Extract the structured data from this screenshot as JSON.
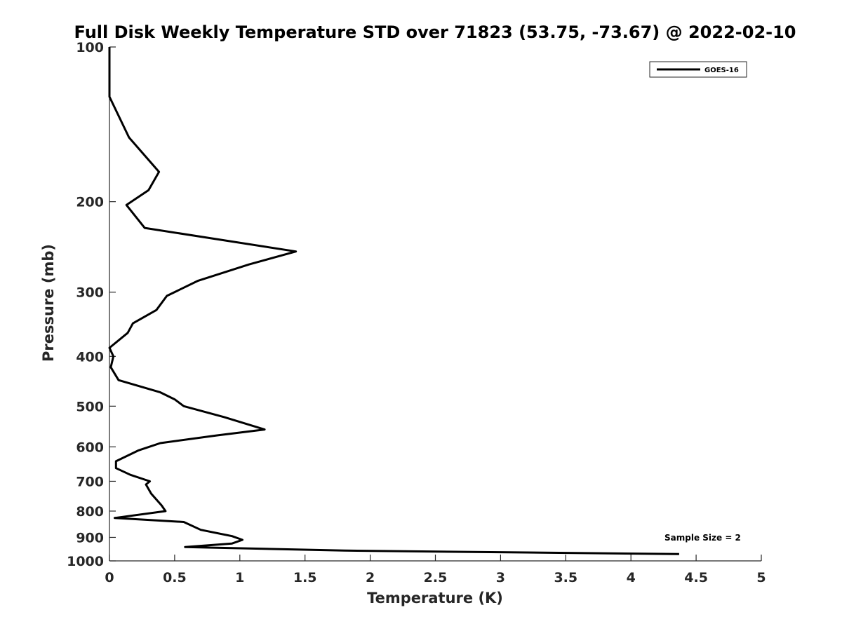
{
  "chart_data": {
    "type": "line",
    "title": "Full Disk Weekly Temperature STD over 71823 (53.75, -73.67) @ 2022-02-10",
    "xlabel": "Temperature (K)",
    "ylabel": "Pressure (mb)",
    "xlim": [
      0,
      5
    ],
    "ylim": [
      100,
      1000
    ],
    "y_scale": "log",
    "y_reversed": true,
    "x_ticks": [
      "0",
      "0.5",
      "1",
      "1.5",
      "2",
      "2.5",
      "3",
      "3.5",
      "4",
      "4.5",
      "5"
    ],
    "x_tick_values": [
      0,
      0.5,
      1,
      1.5,
      2,
      2.5,
      3,
      3.5,
      4,
      4.5,
      5
    ],
    "y_ticks": [
      "100",
      "200",
      "300",
      "400",
      "500",
      "600",
      "700",
      "800",
      "900",
      "1000"
    ],
    "y_tick_values": [
      100,
      200,
      300,
      400,
      500,
      600,
      700,
      800,
      900,
      1000
    ],
    "grid": false,
    "legend_position": "top-right",
    "annotation": "Sample Size = 2",
    "series": [
      {
        "name": "GOES-16",
        "color": "#000000",
        "points": [
          [
            0,
            100
          ],
          [
            0,
            125
          ],
          [
            0.15,
            150
          ],
          [
            0.38,
            175
          ],
          [
            0.3,
            190
          ],
          [
            0.13,
            203
          ],
          [
            0.27,
            225
          ],
          [
            1.43,
            250
          ],
          [
            1.07,
            265
          ],
          [
            0.68,
            285
          ],
          [
            0.44,
            305
          ],
          [
            0.36,
            325
          ],
          [
            0.18,
            345
          ],
          [
            0.14,
            360
          ],
          [
            0,
            385
          ],
          [
            0.03,
            400
          ],
          [
            0.01,
            420
          ],
          [
            0.07,
            445
          ],
          [
            0.39,
            470
          ],
          [
            0.5,
            485
          ],
          [
            0.57,
            500
          ],
          [
            0.88,
            525
          ],
          [
            1.19,
            555
          ],
          [
            0.82,
            570
          ],
          [
            0.39,
            590
          ],
          [
            0.22,
            610
          ],
          [
            0.05,
            640
          ],
          [
            0.05,
            660
          ],
          [
            0.16,
            680
          ],
          [
            0.31,
            700
          ],
          [
            0.28,
            710
          ],
          [
            0.32,
            740
          ],
          [
            0.4,
            780
          ],
          [
            0.43,
            800
          ],
          [
            0.04,
            825
          ],
          [
            0.57,
            840
          ],
          [
            0.7,
            870
          ],
          [
            0.94,
            895
          ],
          [
            1.02,
            910
          ],
          [
            0.94,
            925
          ],
          [
            0.58,
            940
          ],
          [
            1.8,
            955
          ],
          [
            4.37,
            970
          ]
        ]
      }
    ]
  }
}
